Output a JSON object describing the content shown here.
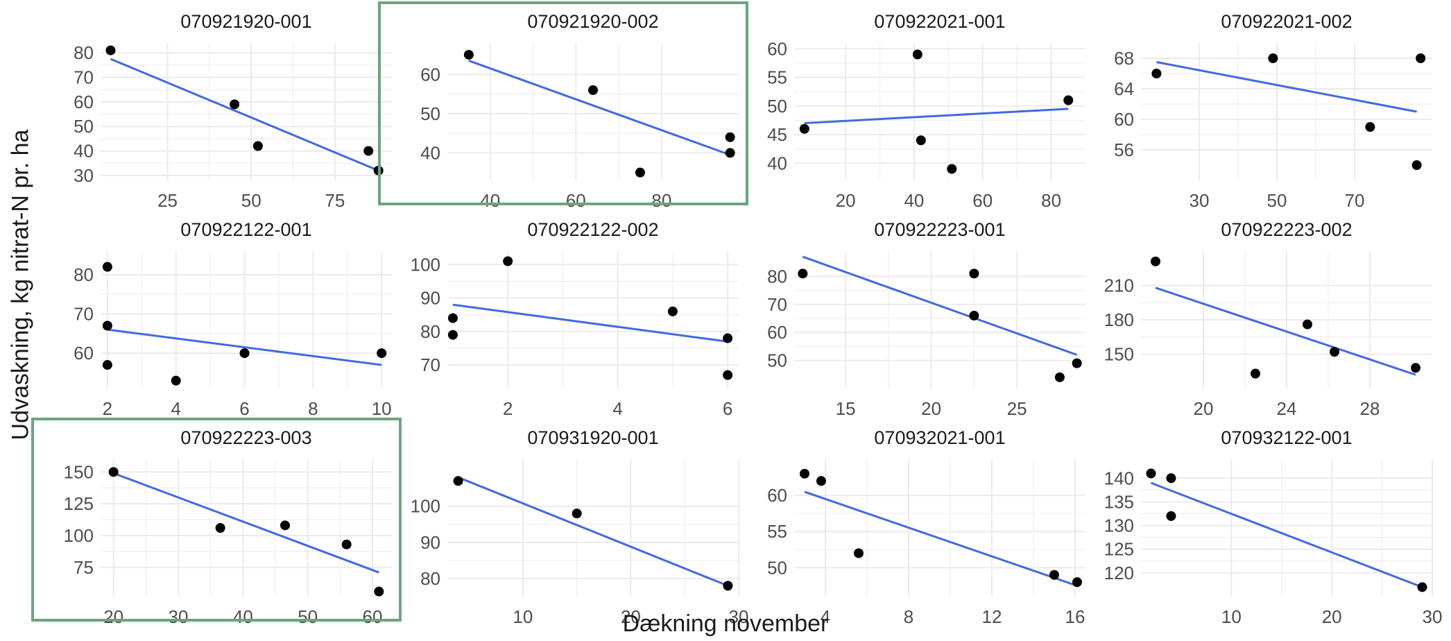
{
  "chart_data": {
    "type": "scatter",
    "xlabel": "Dækning november",
    "ylabel": "Udvaskning, kg nitrat-N pr. ha",
    "highlight_color": "#6aa57f",
    "point_color": "#000000",
    "line_color": "#4169e1",
    "grid_color": "#ebebeb",
    "panels": [
      {
        "title": "070921920-001",
        "highlight": false,
        "xlim": [
          5,
          92
        ],
        "ylim": [
          28,
          84
        ],
        "xticks": [
          25,
          50,
          75
        ],
        "yticks": [
          30,
          40,
          50,
          60,
          70,
          80
        ],
        "points": [
          [
            8,
            81
          ],
          [
            45,
            59
          ],
          [
            52,
            42
          ],
          [
            85,
            40
          ],
          [
            88,
            32
          ]
        ],
        "fit": [
          [
            8,
            77.5
          ],
          [
            88,
            32
          ]
        ]
      },
      {
        "title": "070921920-002",
        "highlight": true,
        "xlim": [
          30,
          98
        ],
        "ylim": [
          33,
          68
        ],
        "xticks": [
          40,
          60,
          80
        ],
        "yticks": [
          40,
          50,
          60
        ],
        "points": [
          [
            35,
            65
          ],
          [
            64,
            56
          ],
          [
            75,
            35
          ],
          [
            96,
            44
          ],
          [
            96,
            40
          ]
        ],
        "fit": [
          [
            35,
            63.5
          ],
          [
            96,
            39.5
          ]
        ]
      },
      {
        "title": "070922021-001",
        "highlight": false,
        "xlim": [
          5,
          90
        ],
        "ylim": [
          37,
          61
        ],
        "xticks": [
          20,
          40,
          60,
          80
        ],
        "yticks": [
          40,
          45,
          50,
          55,
          60
        ],
        "points": [
          [
            8,
            46
          ],
          [
            41,
            59
          ],
          [
            42,
            44
          ],
          [
            51,
            39
          ],
          [
            85,
            51
          ]
        ],
        "fit": [
          [
            8,
            47
          ],
          [
            85,
            49.5
          ]
        ]
      },
      {
        "title": "070922021-002",
        "highlight": false,
        "xlim": [
          15,
          90
        ],
        "ylim": [
          52,
          70
        ],
        "xticks": [
          30,
          50,
          70
        ],
        "yticks": [
          56,
          60,
          64,
          68
        ],
        "points": [
          [
            19,
            66
          ],
          [
            49,
            68
          ],
          [
            74,
            59
          ],
          [
            86,
            54
          ],
          [
            87,
            68
          ]
        ],
        "fit": [
          [
            19,
            67.5
          ],
          [
            86,
            61
          ]
        ]
      },
      {
        "title": "070922122-001",
        "highlight": false,
        "xlim": [
          1.8,
          10.3
        ],
        "ylim": [
          51,
          86
        ],
        "xticks": [
          2,
          4,
          6,
          8,
          10
        ],
        "yticks": [
          60,
          70,
          80
        ],
        "points": [
          [
            2,
            82
          ],
          [
            2,
            67
          ],
          [
            2,
            57
          ],
          [
            4,
            53
          ],
          [
            6,
            60
          ],
          [
            10,
            60
          ]
        ],
        "fit": [
          [
            2,
            66
          ],
          [
            10,
            57
          ]
        ]
      },
      {
        "title": "070922122-002",
        "highlight": false,
        "xlim": [
          0.9,
          6.2
        ],
        "ylim": [
          63,
          104
        ],
        "xticks": [
          2,
          4,
          6
        ],
        "yticks": [
          70,
          80,
          90,
          100
        ],
        "points": [
          [
            1,
            84
          ],
          [
            1,
            79
          ],
          [
            2,
            101
          ],
          [
            5,
            86
          ],
          [
            6,
            78
          ],
          [
            6,
            67
          ]
        ],
        "fit": [
          [
            1,
            88
          ],
          [
            6,
            77
          ]
        ]
      },
      {
        "title": "070922223-001",
        "highlight": false,
        "xlim": [
          12,
          29
        ],
        "ylim": [
          40,
          89
        ],
        "xticks": [
          15,
          20,
          25
        ],
        "yticks": [
          50,
          60,
          70,
          80
        ],
        "points": [
          [
            12.5,
            81
          ],
          [
            22.5,
            81
          ],
          [
            22.5,
            66
          ],
          [
            27.5,
            44
          ],
          [
            28.5,
            49
          ]
        ],
        "fit": [
          [
            12.5,
            87
          ],
          [
            28.5,
            52
          ]
        ]
      },
      {
        "title": "070922223-002",
        "highlight": false,
        "xlim": [
          17,
          31
        ],
        "ylim": [
          120,
          240
        ],
        "xticks": [
          20,
          24,
          28
        ],
        "yticks": [
          150,
          180,
          210
        ],
        "points": [
          [
            17.7,
            231
          ],
          [
            22.5,
            133
          ],
          [
            25,
            176
          ],
          [
            26.3,
            152
          ],
          [
            30.2,
            138
          ]
        ],
        "fit": [
          [
            17.7,
            208
          ],
          [
            30.2,
            132
          ]
        ]
      },
      {
        "title": "070922223-003",
        "highlight": true,
        "xlim": [
          18,
          63
        ],
        "ylim": [
          52,
          160
        ],
        "xticks": [
          20,
          30,
          40,
          50,
          60
        ],
        "yticks": [
          75,
          100,
          125,
          150
        ],
        "points": [
          [
            20,
            150
          ],
          [
            36.5,
            106
          ],
          [
            46.5,
            108
          ],
          [
            56,
            93
          ],
          [
            61,
            56
          ]
        ],
        "fit": [
          [
            20,
            149
          ],
          [
            61,
            71
          ]
        ]
      },
      {
        "title": "070931920-001",
        "highlight": false,
        "xlim": [
          3,
          30
        ],
        "ylim": [
          75,
          113
        ],
        "xticks": [
          10,
          20,
          30
        ],
        "yticks": [
          80,
          90,
          100
        ],
        "points": [
          [
            4,
            107
          ],
          [
            15,
            98
          ],
          [
            29,
            78
          ]
        ],
        "fit": [
          [
            4,
            108
          ],
          [
            29,
            78
          ]
        ]
      },
      {
        "title": "070932021-001",
        "highlight": false,
        "xlim": [
          2.5,
          16.5
        ],
        "ylim": [
          46,
          65
        ],
        "xticks": [
          4,
          8,
          12,
          16
        ],
        "yticks": [
          50,
          55,
          60
        ],
        "points": [
          [
            3,
            63
          ],
          [
            3.8,
            62
          ],
          [
            5.6,
            52
          ],
          [
            15,
            49
          ],
          [
            16.1,
            48
          ]
        ],
        "fit": [
          [
            3,
            60.5
          ],
          [
            16.1,
            47.5
          ]
        ]
      },
      {
        "title": "070932122-001",
        "highlight": false,
        "xlim": [
          1,
          30
        ],
        "ylim": [
          115,
          144
        ],
        "xticks": [
          10,
          20,
          30
        ],
        "yticks": [
          120,
          125,
          130,
          135,
          140
        ],
        "points": [
          [
            2,
            141
          ],
          [
            4,
            140
          ],
          [
            4,
            132
          ],
          [
            29,
            117
          ]
        ],
        "fit": [
          [
            2,
            139
          ],
          [
            29,
            117
          ]
        ]
      }
    ]
  }
}
